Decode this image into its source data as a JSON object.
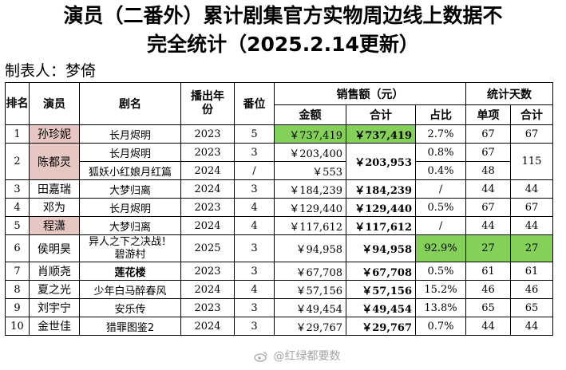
{
  "title_line1": "演员（二番外）累计剧集官方实物周边线上数据不",
  "title_line2": "完全统计（2025.2.14更新）",
  "maker": "制表人：梦倚",
  "headers": {
    "rank": "排名",
    "actor": "演员",
    "show": "剧名",
    "year": "播出年份",
    "billing": "番位",
    "sales": "销售额（元）",
    "amount": "金额",
    "total": "合计",
    "share": "占比",
    "days": "统计天数",
    "days_single": "单项",
    "days_total": "合计"
  },
  "rows": [
    {
      "rank": "1",
      "actor": "孙珍妮",
      "show": "长月烬明",
      "year": "2023",
      "billing": "5",
      "amount": "￥737,419",
      "total": "￥737,419",
      "share": "2.7%",
      "d1": "67",
      "d2": "67"
    },
    {
      "rank": "2",
      "actor": "陈都灵",
      "show": "长月烬明",
      "year": "2023",
      "billing": "3",
      "amount": "￥203,400",
      "total": "￥203,953",
      "share": "0.8%",
      "d1": "67",
      "d2": "115",
      "sub": {
        "show": "狐妖小红娘月红篇",
        "year": "2024",
        "billing": "/",
        "amount": "￥553",
        "share": "0.4%",
        "d1": "48"
      }
    },
    {
      "rank": "3",
      "actor": "田嘉瑞",
      "show": "大梦归离",
      "year": "2024",
      "billing": "3",
      "amount": "￥184,239",
      "total": "￥184,239",
      "share": "/",
      "d1": "44",
      "d2": "44"
    },
    {
      "rank": "4",
      "actor": "邓为",
      "show": "长月烬明",
      "year": "2023",
      "billing": "4",
      "amount": "￥129,440",
      "total": "￥129,440",
      "share": "0.5%",
      "d1": "67",
      "d2": "67"
    },
    {
      "rank": "5",
      "actor": "程潇",
      "show": "大梦归离",
      "year": "2024",
      "billing": "4",
      "amount": "￥117,612",
      "total": "￥117,612",
      "share": "/",
      "d1": "44",
      "d2": "44"
    },
    {
      "rank": "6",
      "actor": "侯明昊",
      "show": "异人之下之决战！碧游村",
      "year": "2025",
      "billing": "3",
      "amount": "￥94,958",
      "total": "￥94,958",
      "share": "92.9%",
      "d1": "27",
      "d2": "27"
    },
    {
      "rank": "7",
      "actor": "肖顺尧",
      "show": "莲花楼",
      "year": "2023",
      "billing": "3",
      "amount": "￥67,708",
      "total": "￥67,708",
      "share": "0.5%",
      "d1": "61",
      "d2": "61"
    },
    {
      "rank": "8",
      "actor": "夏之光",
      "show": "少年白马醉春风",
      "year": "2024",
      "billing": "4",
      "amount": "￥57,156",
      "total": "￥57,156",
      "share": "15.2%",
      "d1": "46",
      "d2": "46"
    },
    {
      "rank": "9",
      "actor": "刘宇宁",
      "show": "安乐传",
      "year": "2023",
      "billing": "3",
      "amount": "￥49,454",
      "total": "￥49,454",
      "share": "13.8%",
      "d1": "65",
      "d2": "65"
    },
    {
      "rank": "10",
      "actor": "金世佳",
      "show": "猎罪图鉴2",
      "year": "2024",
      "billing": "3",
      "amount": "￥29,767",
      "total": "￥29,767",
      "share": "0.7%",
      "d1": "44",
      "d2": "44"
    }
  ],
  "show6_line1": "异人之下之决战！",
  "show6_line2": "碧游村",
  "watermark": "@红绿都要数",
  "colors": {
    "highlight_green": "#84d05b",
    "highlight_pink": "#e6c7c2"
  }
}
